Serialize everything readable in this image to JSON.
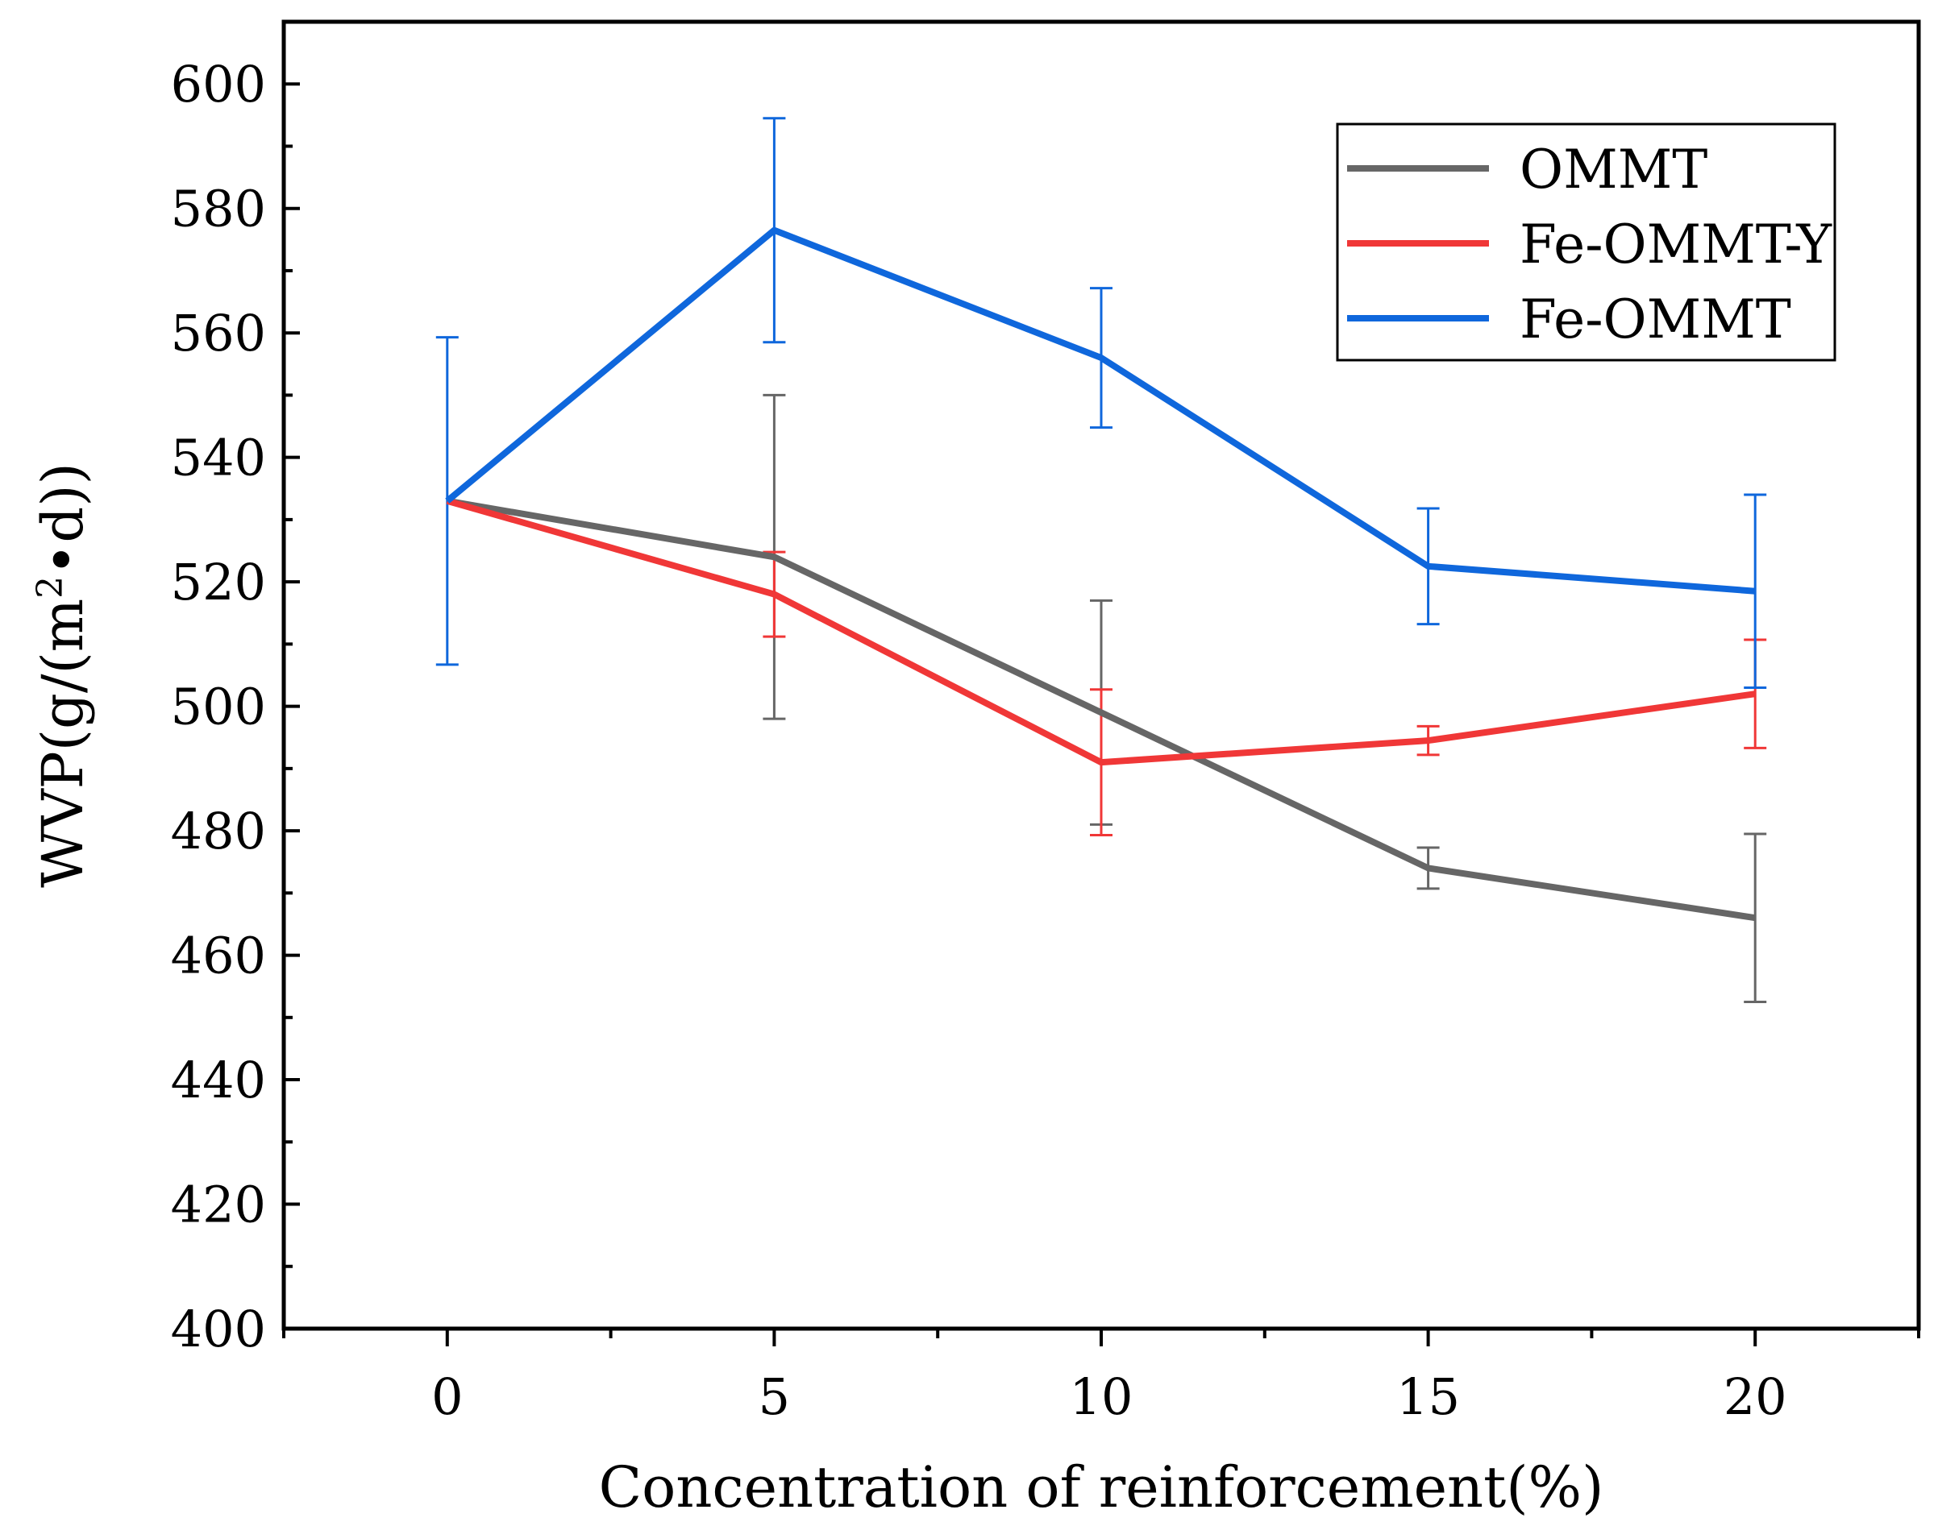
{
  "chart_data": {
    "type": "line",
    "title": "",
    "xlabel": "Concentration of reinforcement(%)",
    "ylabel_main": "WVP(g/(m",
    "ylabel_sup": "2",
    "ylabel_tail": "•d))",
    "x": [
      0,
      5,
      10,
      15,
      20
    ],
    "xlim": [
      -2.5,
      22.5
    ],
    "ylim": [
      400,
      610
    ],
    "x_ticks": [
      0,
      5,
      10,
      15,
      20
    ],
    "y_ticks": [
      400,
      420,
      440,
      460,
      480,
      500,
      520,
      540,
      560,
      580,
      600
    ],
    "grid": false,
    "legend_position": "top-right",
    "series": [
      {
        "name": "OMMT",
        "color": "#666666",
        "values": [
          533,
          524,
          499,
          474,
          466
        ],
        "errors": [
          0,
          26,
          18,
          3.3,
          13.5
        ]
      },
      {
        "name": "Fe-OMMT-Y",
        "color": "#f03737",
        "values": [
          533,
          518,
          491,
          494.5,
          502
        ],
        "errors": [
          0,
          6.8,
          11.7,
          2.3,
          8.7
        ]
      },
      {
        "name": "Fe-OMMT",
        "color": "#0f67dc",
        "values": [
          533,
          576.5,
          556,
          522.5,
          518.5
        ],
        "errors": [
          26.3,
          18,
          11.2,
          9.3,
          15.5
        ]
      }
    ]
  }
}
